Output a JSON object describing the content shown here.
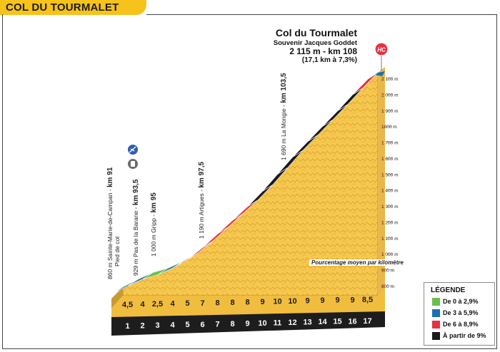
{
  "header": {
    "title": "COL DU TOURMALET"
  },
  "summit": {
    "name": "Col du Tourmalet",
    "subtitle": "Souvenir Jacques Goddet",
    "altitude_km": "2 115 m - km 108",
    "gradient_info": "(17,1 km à 7,3%)",
    "category": "HC"
  },
  "waypoints": [
    {
      "text": "860 m Sainte-Marie-de-Campan - ",
      "km": "km 91",
      "sub": "Pied de col"
    },
    {
      "text": "929 m Pas de la Barane - ",
      "km": "km 93,5",
      "sub": ""
    },
    {
      "text": "1 000 m Gripp - ",
      "km": "km 95",
      "sub": ""
    },
    {
      "text": "1 190 m Artigues - ",
      "km": "km 97,5",
      "sub": ""
    },
    {
      "text": "1 690 m La Mongie - ",
      "km": "km 103,5",
      "sub": ""
    }
  ],
  "icons": {
    "waypoint_1": "cycling-sprint-icon",
    "waypoint_2": "water-bottle-icon"
  },
  "note": "Pourcentage moyen par kilomètre",
  "legend": {
    "title": "LÉGENDE",
    "items": [
      {
        "label": "De 0 à 2,9%",
        "color": "#6cc04a"
      },
      {
        "label": "De 3 à 5,9%",
        "color": "#1a6fb5"
      },
      {
        "label": "De 6 à 8,9%",
        "color": "#e5323f"
      },
      {
        "label": "À partir de 9%",
        "color": "#1a1a1a"
      }
    ]
  },
  "colors": {
    "terrain": "#f6c84e",
    "terrain_dark": "#d9a132",
    "base": "#1d1d1d",
    "side": "#8a6a1a",
    "accent": "#f6c21c"
  },
  "chart_data": {
    "type": "area",
    "title": "COL DU TOURMALET",
    "xlabel": "",
    "ylabel": "",
    "x": [
      0,
      1,
      2,
      3,
      4,
      5,
      6,
      7,
      8,
      9,
      10,
      11,
      12,
      13,
      14,
      15,
      16,
      17
    ],
    "km_labels": [
      "1",
      "2",
      "3",
      "4",
      "5",
      "6",
      "7",
      "8",
      "9",
      "10",
      "11",
      "12",
      "13",
      "14",
      "15",
      "16",
      "17"
    ],
    "segment_gradients": [
      "4,5",
      "4",
      "2,5",
      "4",
      "5",
      "7",
      "8",
      "8",
      "8",
      "9",
      "10",
      "10",
      "9",
      "9",
      "9",
      "9",
      "8,5"
    ],
    "segment_values": [
      4.5,
      4,
      2.5,
      4,
      5,
      7,
      8,
      8,
      8,
      9,
      10,
      10,
      9,
      9,
      9,
      9,
      8.5
    ],
    "altitudes": [
      860,
      905,
      945,
      970,
      1010,
      1060,
      1130,
      1210,
      1290,
      1370,
      1460,
      1560,
      1660,
      1750,
      1840,
      1930,
      2025,
      2115
    ],
    "y_ticks": [
      800,
      900,
      1000,
      1100,
      1200,
      1300,
      1400,
      1500,
      1600,
      1700,
      1800,
      1900,
      2000,
      2100
    ],
    "y_tick_labels": [
      "800 m",
      "900 m",
      "1 000 m",
      "1 100 m",
      "1 200 m",
      "1 300 m",
      "1 400 m",
      "1 500 m",
      "1 600 m",
      "1 700 m",
      "1800 m",
      "1 900 m",
      "2 000 m",
      "2 100 m"
    ],
    "ylim": [
      800,
      2115
    ],
    "grid": false,
    "legend_position": "bottom-right"
  }
}
